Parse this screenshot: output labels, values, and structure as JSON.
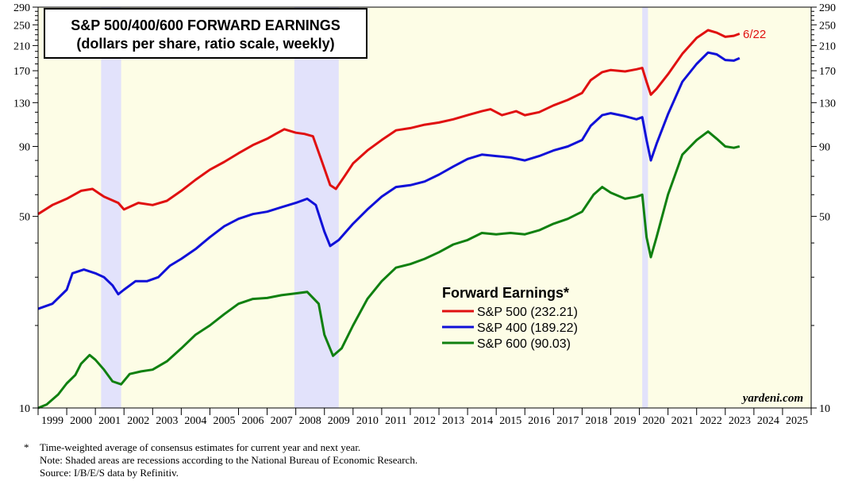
{
  "chart_data": {
    "type": "line",
    "title": "S&P 500/400/600 FORWARD EARNINGS",
    "subtitle": "(dollars per share, ratio scale, weekly)",
    "y_scale": "log",
    "ylim": [
      10,
      290
    ],
    "y_ticks": [
      10,
      50,
      90,
      130,
      170,
      210,
      250,
      290
    ],
    "y_tick_labels": [
      "10",
      "50",
      "90",
      "130",
      "170",
      "210",
      "250",
      "290"
    ],
    "xlim": [
      1999,
      2026
    ],
    "x_tick_labels": [
      "1999",
      "2000",
      "2001",
      "2002",
      "2003",
      "2004",
      "2005",
      "2006",
      "2007",
      "2008",
      "2009",
      "2010",
      "2011",
      "2012",
      "2013",
      "2014",
      "2015",
      "2016",
      "2017",
      "2018",
      "2019",
      "2020",
      "2021",
      "2022",
      "2023",
      "2024",
      "2025"
    ],
    "recessions": [
      [
        2001.2,
        2001.9
      ],
      [
        2007.95,
        2009.5
      ],
      [
        2020.1,
        2020.3
      ]
    ],
    "legend_title": "Forward Earnings*",
    "series": [
      {
        "name": "S&P 500",
        "value_label": "(232.21)",
        "color": "#e01010",
        "points": [
          [
            1999.0,
            51
          ],
          [
            1999.5,
            55
          ],
          [
            2000.0,
            58
          ],
          [
            2000.5,
            62
          ],
          [
            2000.9,
            63
          ],
          [
            2001.3,
            59
          ],
          [
            2001.8,
            56
          ],
          [
            2002.0,
            53
          ],
          [
            2002.5,
            56
          ],
          [
            2003.0,
            55
          ],
          [
            2003.5,
            57
          ],
          [
            2004.0,
            62
          ],
          [
            2004.5,
            68
          ],
          [
            2005.0,
            74
          ],
          [
            2005.5,
            79
          ],
          [
            2006.0,
            85
          ],
          [
            2006.5,
            91
          ],
          [
            2007.0,
            96
          ],
          [
            2007.3,
            100
          ],
          [
            2007.6,
            104
          ],
          [
            2008.0,
            101
          ],
          [
            2008.3,
            100
          ],
          [
            2008.6,
            98
          ],
          [
            2008.9,
            80
          ],
          [
            2009.2,
            65
          ],
          [
            2009.4,
            63
          ],
          [
            2009.7,
            70
          ],
          [
            2010.0,
            78
          ],
          [
            2010.5,
            87
          ],
          [
            2011.0,
            95
          ],
          [
            2011.5,
            103
          ],
          [
            2012.0,
            105
          ],
          [
            2012.5,
            108
          ],
          [
            2013.0,
            110
          ],
          [
            2013.5,
            113
          ],
          [
            2014.0,
            117
          ],
          [
            2014.5,
            121
          ],
          [
            2014.8,
            123
          ],
          [
            2015.2,
            117
          ],
          [
            2015.7,
            121
          ],
          [
            2016.0,
            117
          ],
          [
            2016.5,
            120
          ],
          [
            2017.0,
            127
          ],
          [
            2017.5,
            133
          ],
          [
            2018.0,
            141
          ],
          [
            2018.3,
            157
          ],
          [
            2018.7,
            168
          ],
          [
            2019.0,
            171
          ],
          [
            2019.5,
            169
          ],
          [
            2019.9,
            172
          ],
          [
            2020.1,
            174
          ],
          [
            2020.25,
            155
          ],
          [
            2020.4,
            139
          ],
          [
            2020.6,
            146
          ],
          [
            2021.0,
            165
          ],
          [
            2021.5,
            196
          ],
          [
            2022.0,
            224
          ],
          [
            2022.4,
            239
          ],
          [
            2022.7,
            234
          ],
          [
            2023.0,
            226
          ],
          [
            2023.3,
            228
          ],
          [
            2023.5,
            232
          ]
        ]
      },
      {
        "name": "S&P 400",
        "value_label": "(189.22)",
        "color": "#1010d8",
        "points": [
          [
            1999.0,
            23
          ],
          [
            1999.5,
            24
          ],
          [
            2000.0,
            27
          ],
          [
            2000.2,
            31
          ],
          [
            2000.6,
            32
          ],
          [
            2001.0,
            31
          ],
          [
            2001.3,
            30
          ],
          [
            2001.6,
            28
          ],
          [
            2001.8,
            26
          ],
          [
            2002.0,
            27
          ],
          [
            2002.4,
            29
          ],
          [
            2002.8,
            29
          ],
          [
            2003.2,
            30
          ],
          [
            2003.6,
            33
          ],
          [
            2004.0,
            35
          ],
          [
            2004.5,
            38
          ],
          [
            2005.0,
            42
          ],
          [
            2005.5,
            46
          ],
          [
            2006.0,
            49
          ],
          [
            2006.5,
            51
          ],
          [
            2007.0,
            52
          ],
          [
            2007.5,
            54
          ],
          [
            2008.0,
            56
          ],
          [
            2008.4,
            58
          ],
          [
            2008.7,
            55
          ],
          [
            2009.0,
            44
          ],
          [
            2009.2,
            39
          ],
          [
            2009.5,
            41
          ],
          [
            2010.0,
            47
          ],
          [
            2010.5,
            53
          ],
          [
            2011.0,
            59
          ],
          [
            2011.5,
            64
          ],
          [
            2012.0,
            65
          ],
          [
            2012.5,
            67
          ],
          [
            2013.0,
            71
          ],
          [
            2013.5,
            76
          ],
          [
            2014.0,
            81
          ],
          [
            2014.5,
            84
          ],
          [
            2015.0,
            83
          ],
          [
            2015.5,
            82
          ],
          [
            2016.0,
            80
          ],
          [
            2016.5,
            83
          ],
          [
            2017.0,
            87
          ],
          [
            2017.5,
            90
          ],
          [
            2018.0,
            95
          ],
          [
            2018.3,
            107
          ],
          [
            2018.7,
            117
          ],
          [
            2019.0,
            119
          ],
          [
            2019.5,
            116
          ],
          [
            2019.9,
            113
          ],
          [
            2020.1,
            115
          ],
          [
            2020.25,
            95
          ],
          [
            2020.4,
            80
          ],
          [
            2020.6,
            92
          ],
          [
            2021.0,
            118
          ],
          [
            2021.5,
            155
          ],
          [
            2022.0,
            180
          ],
          [
            2022.4,
            198
          ],
          [
            2022.7,
            195
          ],
          [
            2023.0,
            186
          ],
          [
            2023.3,
            185
          ],
          [
            2023.5,
            189
          ]
        ]
      },
      {
        "name": "S&P 600",
        "value_label": "(90.03)",
        "color": "#108010",
        "points": [
          [
            1999.0,
            10
          ],
          [
            1999.3,
            10.3
          ],
          [
            1999.7,
            11.2
          ],
          [
            2000.0,
            12.3
          ],
          [
            2000.3,
            13.2
          ],
          [
            2000.5,
            14.5
          ],
          [
            2000.8,
            15.6
          ],
          [
            2001.0,
            15.0
          ],
          [
            2001.3,
            13.8
          ],
          [
            2001.6,
            12.5
          ],
          [
            2001.9,
            12.2
          ],
          [
            2002.2,
            13.3
          ],
          [
            2002.6,
            13.6
          ],
          [
            2003.0,
            13.8
          ],
          [
            2003.5,
            14.8
          ],
          [
            2004.0,
            16.5
          ],
          [
            2004.5,
            18.5
          ],
          [
            2005.0,
            20.0
          ],
          [
            2005.5,
            22.0
          ],
          [
            2006.0,
            24.0
          ],
          [
            2006.5,
            25.0
          ],
          [
            2007.0,
            25.2
          ],
          [
            2007.5,
            25.8
          ],
          [
            2008.0,
            26.2
          ],
          [
            2008.4,
            26.5
          ],
          [
            2008.8,
            24.0
          ],
          [
            2009.0,
            18.5
          ],
          [
            2009.3,
            15.5
          ],
          [
            2009.6,
            16.5
          ],
          [
            2010.0,
            20.0
          ],
          [
            2010.5,
            25.0
          ],
          [
            2011.0,
            29.0
          ],
          [
            2011.5,
            32.5
          ],
          [
            2012.0,
            33.5
          ],
          [
            2012.5,
            35.0
          ],
          [
            2013.0,
            37.0
          ],
          [
            2013.5,
            39.5
          ],
          [
            2014.0,
            41.0
          ],
          [
            2014.5,
            43.5
          ],
          [
            2015.0,
            43.0
          ],
          [
            2015.5,
            43.5
          ],
          [
            2016.0,
            43.0
          ],
          [
            2016.5,
            44.5
          ],
          [
            2017.0,
            47.0
          ],
          [
            2017.5,
            49.0
          ],
          [
            2018.0,
            52.0
          ],
          [
            2018.4,
            60.0
          ],
          [
            2018.7,
            64.0
          ],
          [
            2019.0,
            61.0
          ],
          [
            2019.5,
            58.0
          ],
          [
            2019.9,
            59.0
          ],
          [
            2020.1,
            60.0
          ],
          [
            2020.25,
            42.0
          ],
          [
            2020.4,
            35.5
          ],
          [
            2020.6,
            42.0
          ],
          [
            2021.0,
            60.0
          ],
          [
            2021.5,
            84.0
          ],
          [
            2022.0,
            95.0
          ],
          [
            2022.4,
            102.0
          ],
          [
            2022.7,
            96.0
          ],
          [
            2023.0,
            90.0
          ],
          [
            2023.3,
            89.0
          ],
          [
            2023.5,
            90.03
          ]
        ]
      }
    ],
    "end_label": "6/22",
    "watermark": "yardeni.com"
  },
  "footnotes": {
    "star": "*",
    "line1": "Time-weighted average of consensus estimates for current year and next year.",
    "line2": "Note: Shaded areas are recessions according to the National Bureau of Economic Research.",
    "line3": "Source: I/B/E/S data by Refinitiv."
  }
}
